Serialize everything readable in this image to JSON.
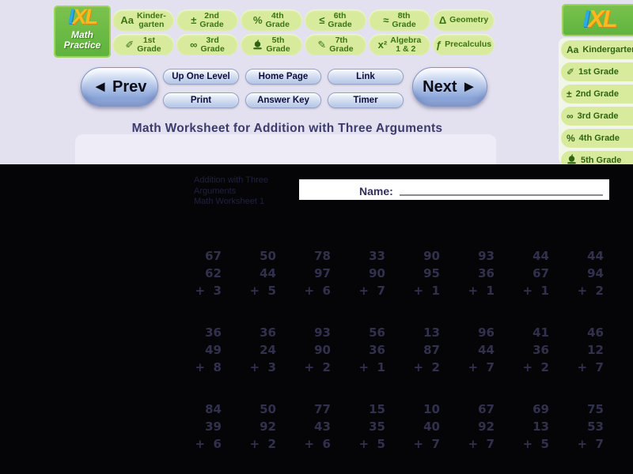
{
  "header": {
    "logo": {
      "i": "I",
      "x": "X",
      "l": "L",
      "sub1": "Math",
      "sub2": "Practice"
    },
    "grade_buttons": [
      {
        "id": "kindergarten",
        "glyph": "Aa",
        "icon": "letters-aa-icon",
        "line1": "Kinder-",
        "line2": "garten"
      },
      {
        "id": "2nd-grade",
        "glyph": "±",
        "icon": "plus-minus-icon",
        "line1": "2nd",
        "line2": "Grade"
      },
      {
        "id": "4th-grade",
        "glyph": "%",
        "icon": "percent-icon",
        "line1": "4th",
        "line2": "Grade"
      },
      {
        "id": "6th-grade",
        "glyph": "≤",
        "icon": "less-equal-icon",
        "line1": "6th",
        "line2": "Grade"
      },
      {
        "id": "8th-grade",
        "glyph": "≈",
        "icon": "approx-icon",
        "line1": "8th",
        "line2": "Grade"
      },
      {
        "id": "geometry",
        "glyph": "Δ",
        "icon": "triangle-icon",
        "line1": "Geometry",
        "line2": ""
      },
      {
        "id": "1st-grade",
        "glyph": "✐",
        "icon": "pencil-cup-icon",
        "line1": "1st",
        "line2": "Grade"
      },
      {
        "id": "3rd-grade",
        "glyph": "∞",
        "icon": "infinity-icon",
        "line1": "3rd",
        "line2": "Grade"
      },
      {
        "id": "5th-grade",
        "glyph": "APPLE",
        "icon": "apple-icon",
        "line1": "5th",
        "line2": "Grade"
      },
      {
        "id": "7th-grade",
        "glyph": "✎",
        "icon": "pencil-icon",
        "line1": "7th",
        "line2": "Grade"
      },
      {
        "id": "algebra-1-2",
        "glyph": "x²",
        "icon": "x-squared-icon",
        "line1": "Algebra",
        "line2": "1 & 2"
      },
      {
        "id": "precalculus",
        "glyph": "ƒ",
        "icon": "function-icon",
        "line1": "Precalculus",
        "line2": ""
      }
    ],
    "sidebar": [
      {
        "id": "kindergarten",
        "glyph": "Aa",
        "icon": "letters-aa-icon",
        "label": "Kindergarten"
      },
      {
        "id": "1st-grade",
        "glyph": "✐",
        "icon": "pencil-cup-icon",
        "label": "1st Grade"
      },
      {
        "id": "2nd-grade",
        "glyph": "±",
        "icon": "plus-minus-icon",
        "label": "2nd Grade"
      },
      {
        "id": "3rd-grade",
        "glyph": "∞",
        "icon": "infinity-icon",
        "label": "3rd Grade"
      },
      {
        "id": "4th-grade",
        "glyph": "%",
        "icon": "percent-icon",
        "label": "4th Grade"
      },
      {
        "id": "5th-grade",
        "glyph": "APPLE",
        "icon": "apple-icon",
        "label": "5th Grade"
      }
    ],
    "nav": {
      "prev_label": "◄ Prev",
      "next_label": "Next ►",
      "row1": [
        {
          "id": "up-one-level",
          "label": "Up One Level"
        },
        {
          "id": "home-page",
          "label": "Home Page"
        },
        {
          "id": "link",
          "label": "Link"
        }
      ],
      "row2": [
        {
          "id": "print",
          "label": "Print"
        },
        {
          "id": "answer-key",
          "label": "Answer Key"
        },
        {
          "id": "timer",
          "label": "Timer"
        }
      ]
    },
    "title": "Math Worksheet for Addition with Three Arguments"
  },
  "worksheet": {
    "meta_line1": "Addition with Three",
    "meta_line2": "Arguments",
    "meta_line3": "Math Worksheet 1",
    "name_label": "Name:",
    "problems": [
      {
        "a": 67,
        "b": 62,
        "c": 3
      },
      {
        "a": 50,
        "b": 44,
        "c": 5
      },
      {
        "a": 78,
        "b": 97,
        "c": 6
      },
      {
        "a": 33,
        "b": 90,
        "c": 7
      },
      {
        "a": 90,
        "b": 95,
        "c": 1
      },
      {
        "a": 93,
        "b": 36,
        "c": 1
      },
      {
        "a": 44,
        "b": 67,
        "c": 1
      },
      {
        "a": 44,
        "b": 94,
        "c": 2
      },
      {
        "a": 36,
        "b": 49,
        "c": 8
      },
      {
        "a": 36,
        "b": 24,
        "c": 3
      },
      {
        "a": 93,
        "b": 90,
        "c": 2
      },
      {
        "a": 56,
        "b": 36,
        "c": 1
      },
      {
        "a": 13,
        "b": 87,
        "c": 2
      },
      {
        "a": 96,
        "b": 44,
        "c": 7
      },
      {
        "a": 41,
        "b": 36,
        "c": 2
      },
      {
        "a": 46,
        "b": 12,
        "c": 7
      },
      {
        "a": 84,
        "b": 39,
        "c": 6
      },
      {
        "a": 50,
        "b": 92,
        "c": 2
      },
      {
        "a": 77,
        "b": 43,
        "c": 6
      },
      {
        "a": 15,
        "b": 35,
        "c": 5
      },
      {
        "a": 10,
        "b": 40,
        "c": 7
      },
      {
        "a": 67,
        "b": 92,
        "c": 7
      },
      {
        "a": 69,
        "b": 13,
        "c": 5
      },
      {
        "a": 75,
        "b": 53,
        "c": 7
      }
    ]
  },
  "colors": {
    "header_bg": "#e3e1ef",
    "logo_green": "#6abf45",
    "logo_blue": "#2aabe2",
    "logo_yellow": "#ffb81e",
    "grade_pill_bg": "#d8eb9d",
    "grade_text": "#3a7413",
    "nav_blue": "#8da8dc",
    "title_text": "#3b3b6d",
    "worksheet_bg": "#050507",
    "number_text": "#31314d"
  }
}
